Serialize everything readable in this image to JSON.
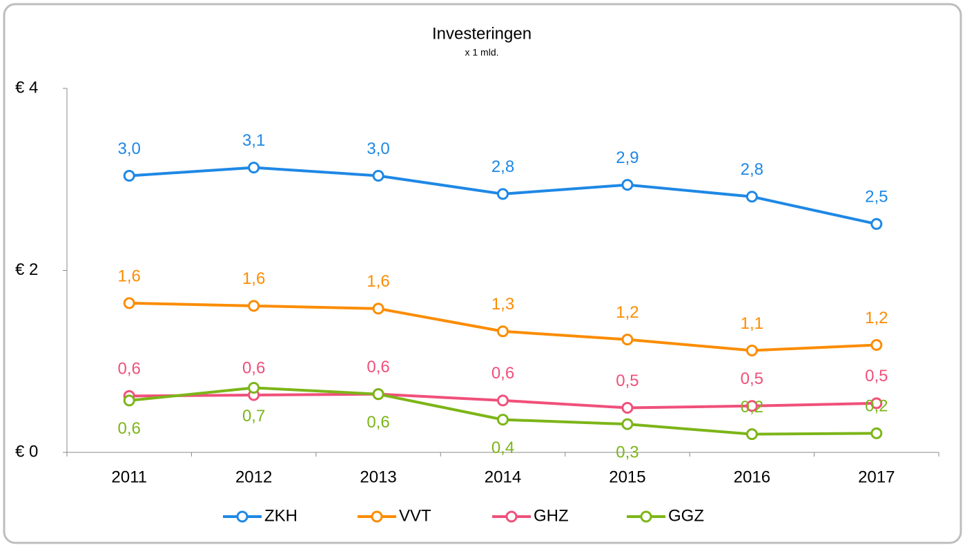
{
  "chart_data": {
    "type": "line",
    "title": "Investeringen",
    "subtitle": "x 1 mld.",
    "categories": [
      "2011",
      "2012",
      "2013",
      "2014",
      "2015",
      "2016",
      "2017"
    ],
    "series": [
      {
        "name": "ZKH",
        "color": "#1e88e5",
        "values": [
          3.04,
          3.13,
          3.04,
          2.84,
          2.94,
          2.81,
          2.51
        ],
        "value_labels": [
          "3,0",
          "3,1",
          "3,0",
          "2,8",
          "2,9",
          "2,8",
          "2,5"
        ]
      },
      {
        "name": "VVT",
        "color": "#fb8c00",
        "values": [
          1.64,
          1.61,
          1.58,
          1.33,
          1.24,
          1.12,
          1.18
        ],
        "value_labels": [
          "1,6",
          "1,6",
          "1,6",
          "1,3",
          "1,2",
          "1,1",
          "1,2"
        ]
      },
      {
        "name": "GHZ",
        "color": "#f0507a",
        "values": [
          0.62,
          0.63,
          0.64,
          0.57,
          0.49,
          0.51,
          0.54
        ],
        "value_labels": [
          "0,6",
          "0,6",
          "0,6",
          "0,6",
          "0,5",
          "0,5",
          "0,5"
        ]
      },
      {
        "name": "GGZ",
        "color": "#7cb518",
        "values": [
          0.57,
          0.71,
          0.64,
          0.36,
          0.31,
          0.2,
          0.21
        ],
        "value_labels": [
          "0,6",
          "0,7",
          "0,6",
          "0,4",
          "0,3",
          "0,2",
          "0,2"
        ]
      }
    ],
    "ylim": [
      0,
      4
    ],
    "yticks": [
      {
        "value": 0,
        "label": "€ 0"
      },
      {
        "value": 2,
        "label": "€ 2"
      },
      {
        "value": 4,
        "label": "€ 4"
      }
    ],
    "legend": "bottom"
  }
}
